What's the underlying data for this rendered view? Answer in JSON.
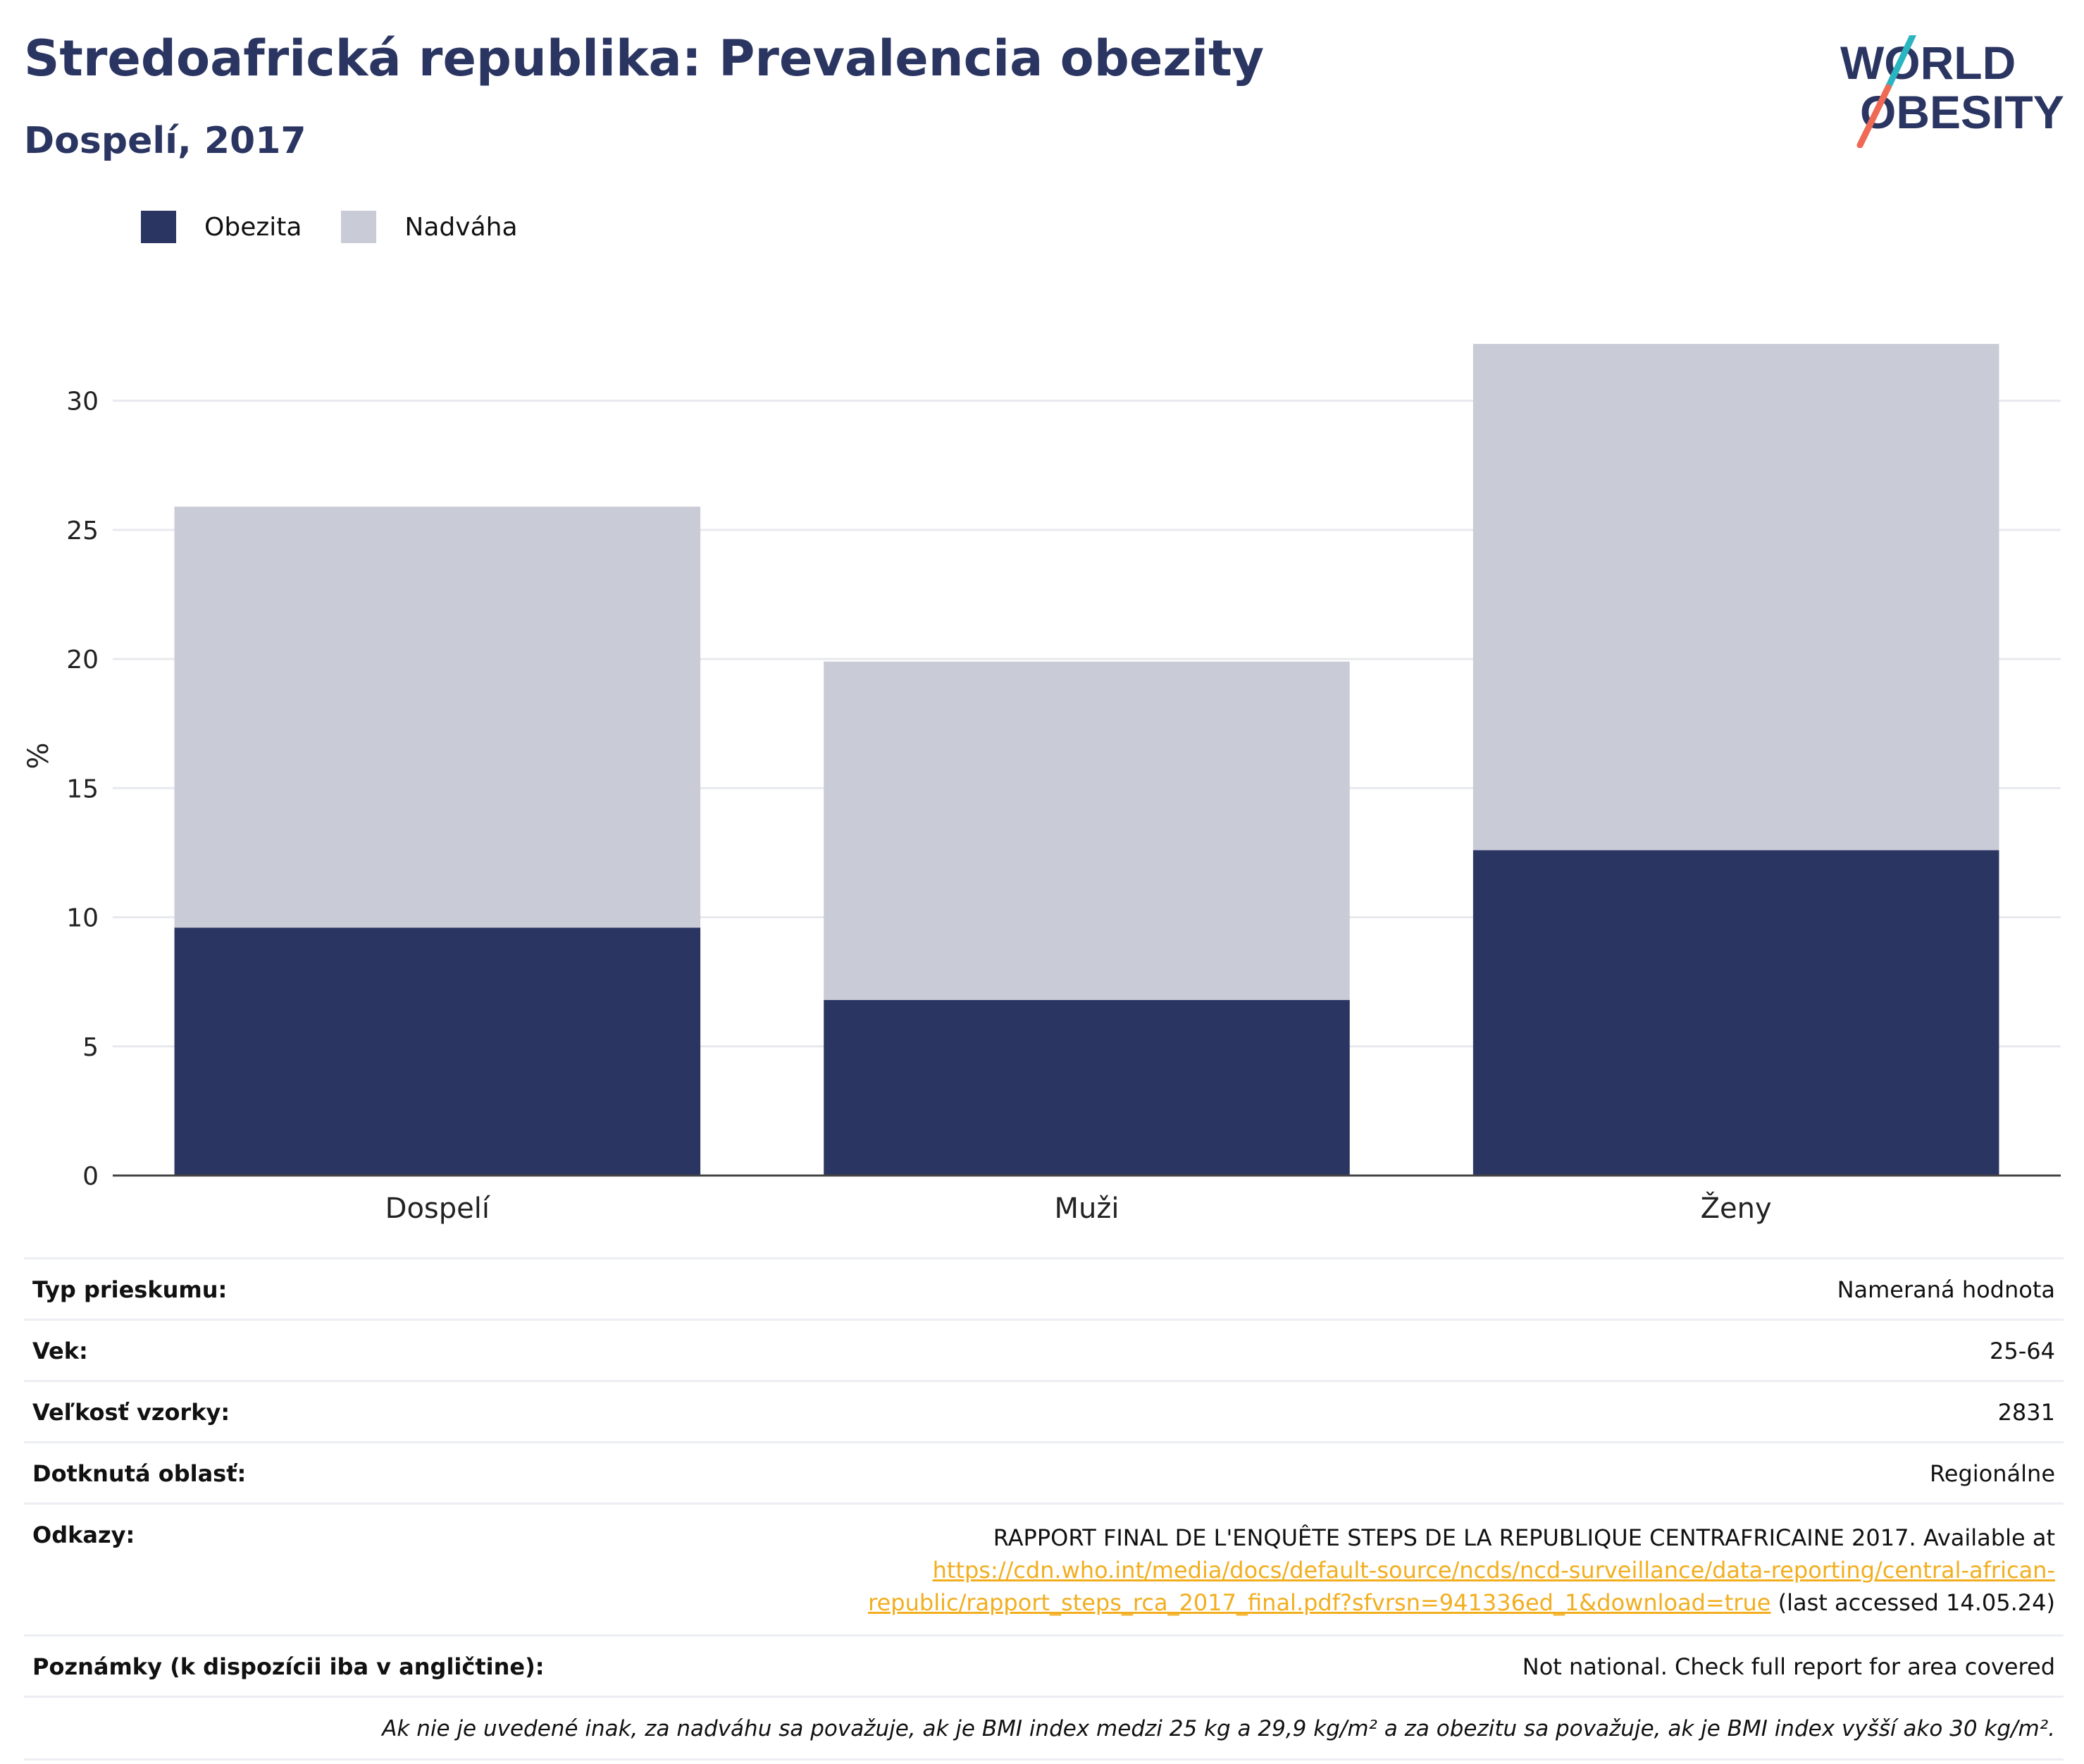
{
  "header": {
    "title": "Stredoafrická republika: Prevalencia obezity",
    "subtitle": "Dospelí, 2017"
  },
  "logo": {
    "line1": "WORLD",
    "line2": "OBESITY",
    "colors": {
      "text": "#2b3562",
      "slash_top": "#2bb5c0",
      "slash_bottom": "#ee6a55"
    }
  },
  "legend": [
    {
      "label": "Obezita",
      "color": "#2b3562"
    },
    {
      "label": "Nadváha",
      "color": "#c9cbd6"
    }
  ],
  "chart_data": {
    "type": "bar",
    "stacked": true,
    "categories": [
      "Dospelí",
      "Muži",
      "Ženy"
    ],
    "series": [
      {
        "name": "Obezita",
        "values": [
          9.6,
          6.8,
          12.6
        ],
        "color": "#2b3562"
      },
      {
        "name": "Nadváha",
        "values": [
          16.3,
          13.1,
          19.6
        ],
        "color": "#c9cbd6"
      }
    ],
    "ylabel": "%",
    "xlabel": "",
    "ylim": [
      0,
      32.5
    ],
    "yticks": [
      0,
      5,
      10,
      15,
      20,
      25,
      30
    ],
    "grid": true,
    "legend_position": "top-left"
  },
  "info": {
    "survey_type": {
      "label": "Typ prieskumu:",
      "value": "Nameraná hodnota"
    },
    "age": {
      "label": "Vek:",
      "value": "25-64"
    },
    "sample_size": {
      "label": "Veľkosť vzorky:",
      "value": "2831"
    },
    "area": {
      "label": "Dotknutá oblasť:",
      "value": "Regionálne"
    },
    "references": {
      "label": "Odkazy:",
      "text": "RAPPORT FINAL DE L'ENQUÊTE STEPS DE LA REPUBLIQUE CENTRAFRICAINE 2017. Available at",
      "link_line1": "https://cdn.who.int/media/docs/default-source/ncds/ncd-surveillance/data-reporting/central-african-",
      "link_line2": "republic/rapport_steps_rca_2017_final.pdf?sfvrsn=941336ed_1&download=true",
      "suffix": " (last accessed 14.05.24)"
    },
    "notes": {
      "label": "Poznámky (k dispozícii iba v angličtine):",
      "value": "Not national. Check full report for area covered"
    },
    "footnote": "Ak nie je uvedené inak, za nadváhu sa považuje, ak je BMI index medzi 25 kg a 29,9 kg/m² a za obezitu sa považuje, ak je BMI index vyšší ako 30 kg/m²."
  }
}
